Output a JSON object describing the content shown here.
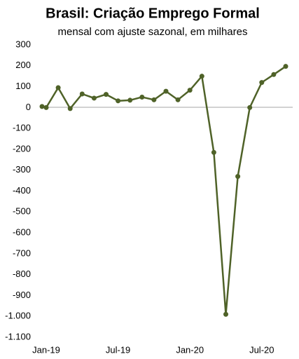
{
  "chart_data": {
    "type": "line",
    "title": "Brasil: Criação Emprego Formal",
    "subtitle": "mensal com ajuste sazonal, em milhares",
    "x": [
      -0.35,
      0,
      1,
      2,
      3,
      4,
      5,
      6,
      7,
      8,
      9,
      10,
      11,
      12,
      13,
      14,
      15,
      16,
      17,
      18,
      19,
      20
    ],
    "series": [
      {
        "color": "#4f6228",
        "values": [
          5,
          0,
          95,
          -5,
          65,
          45,
          63,
          32,
          35,
          50,
          37,
          78,
          37,
          83,
          150,
          -215,
          -990,
          -330,
          0,
          120,
          158,
          197
        ]
      }
    ],
    "xlim": [
      -0.5,
      20.5
    ],
    "xticks": [
      {
        "value": 0,
        "label": "Jan-19"
      },
      {
        "value": 6,
        "label": "Jul-19"
      },
      {
        "value": 12,
        "label": "Jan-20"
      },
      {
        "value": 18,
        "label": "Jul-20"
      }
    ],
    "ylim": [
      -1100,
      300
    ],
    "yticks": [
      300,
      200,
      100,
      0,
      -100,
      -200,
      -300,
      -400,
      -500,
      -600,
      -700,
      -800,
      -900,
      {
        "value": -1000,
        "label": "-1.000"
      },
      {
        "value": -1100,
        "label": "-1.100"
      }
    ],
    "grid": false
  }
}
